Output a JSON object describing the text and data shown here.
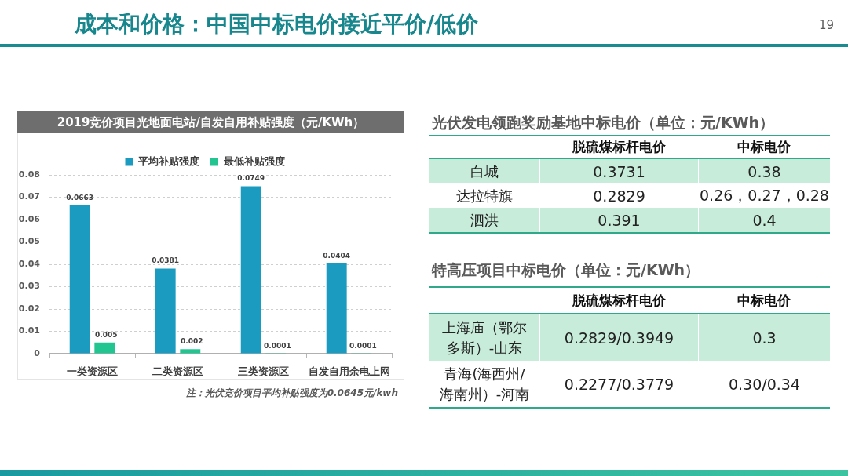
{
  "chart_data": [
    {
      "type": "other",
      "title": "成本和价格：中国中标电价接近平价/低价",
      "annotations": [
        "19"
      ]
    },
    {
      "type": "bar",
      "title": "2019竞价项目光地面电站/自发自用补贴强度（元/KWh）",
      "categories": [
        "一类资源区",
        "二类资源区",
        "三类资源区",
        "自发自用余电上网"
      ],
      "series": [
        {
          "name": "平均补贴强度",
          "color": "#1b9bbf",
          "values": [
            0.0663,
            0.0381,
            0.0749,
            0.0404
          ]
        },
        {
          "name": "最低补贴强度",
          "color": "#22c490",
          "values": [
            0.005,
            0.002,
            0.0001,
            0.0001
          ]
        }
      ],
      "ylim": [
        0,
        0.08
      ],
      "yticks": [
        0,
        0.01,
        0.02,
        0.03,
        0.04,
        0.05,
        0.06,
        0.07,
        0.08
      ],
      "grid": "y",
      "legend": "top",
      "data_labels": true,
      "annotations": [
        "注：光伏竞价项目平均补贴强度为0.0645元/kwh"
      ]
    },
    {
      "type": "other",
      "title": "光伏发电领跑奖励基地中标电价（单位：元/KWh）",
      "categories": [
        "脱硫煤标杆电价",
        "中标电价"
      ],
      "y_categories": [
        "白城",
        "达拉特旗",
        "泗洪"
      ],
      "cell_labels": [
        [
          "0.3731",
          "0.38"
        ],
        [
          "0.2829",
          "0.26，0.27，0.28"
        ],
        [
          "0.391",
          "0.4"
        ]
      ]
    },
    {
      "type": "other",
      "title": "特高压项目中标电价（单位：元/KWh）",
      "categories": [
        "脱硫煤标杆电价",
        "中标电价"
      ],
      "y_categories": [
        "上海庙（鄂尔多斯）-山东",
        "青海(海西州/海南州）-河南"
      ],
      "cell_labels": [
        [
          "0.2829/0.3949",
          "0.3"
        ],
        [
          "0.2277/0.3779",
          "0.30/0.34"
        ]
      ]
    }
  ]
}
